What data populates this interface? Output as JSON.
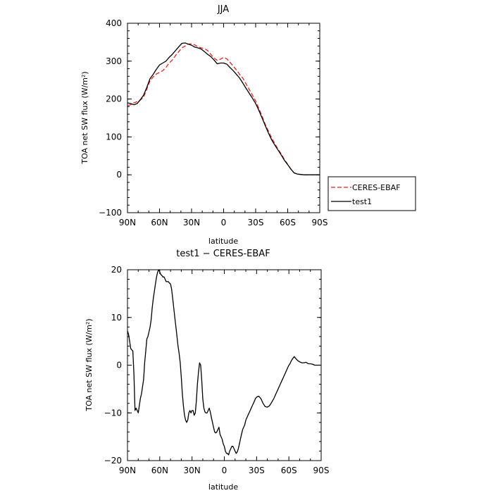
{
  "chart_data": [
    {
      "type": "line",
      "title": "JJA",
      "xlabel": "latitude",
      "ylabel": "TOA net SW flux (W/m²)",
      "xlim": [
        90,
        -90
      ],
      "ylim": [
        -100,
        400
      ],
      "x_tick_values": [
        90,
        60,
        30,
        0,
        -30,
        -60,
        -90
      ],
      "x_tick_labels": [
        "90N",
        "60N",
        "30N",
        "0",
        "30S",
        "60S",
        "90S"
      ],
      "y_tick_values": [
        -100,
        0,
        100,
        200,
        300,
        400
      ],
      "y_tick_labels": [
        "−100",
        "0",
        "100",
        "200",
        "300",
        "400"
      ],
      "legend_position": "right, outside plot",
      "series": [
        {
          "name": "CERES-EBAF",
          "color": "#e8231f",
          "style": "dashed",
          "x": [
            90,
            87,
            84,
            81,
            78,
            75,
            72,
            69,
            66,
            63,
            60,
            57,
            54,
            51,
            48,
            45,
            42,
            39,
            36,
            33,
            30,
            27,
            24,
            21,
            18,
            15,
            12,
            9,
            6,
            3,
            0,
            -3,
            -6,
            -9,
            -12,
            -15,
            -18,
            -21,
            -24,
            -27,
            -30,
            -33,
            -36,
            -39,
            -42,
            -45,
            -48,
            -51,
            -54,
            -57,
            -60,
            -63,
            -66,
            -69,
            -72,
            -75,
            -78,
            -81,
            -84,
            -87,
            -90
          ],
          "y": [
            183,
            185,
            190,
            193,
            197,
            205,
            225,
            247,
            258,
            266,
            270,
            275,
            283,
            295,
            303,
            315,
            325,
            335,
            340,
            345,
            346,
            343,
            338,
            335,
            333,
            328,
            318,
            308,
            302,
            305,
            310,
            306,
            297,
            287,
            277,
            265,
            255,
            240,
            225,
            210,
            195,
            175,
            155,
            133,
            115,
            97,
            82,
            67,
            55,
            40,
            28,
            15,
            5,
            2,
            1,
            0,
            0,
            0,
            0,
            0,
            0
          ]
        },
        {
          "name": "test1",
          "color": "#000000",
          "style": "solid",
          "x": [
            90,
            87,
            84,
            81,
            78,
            75,
            72,
            69,
            66,
            63,
            60,
            57,
            54,
            51,
            48,
            45,
            42,
            39,
            36,
            33,
            30,
            27,
            24,
            21,
            18,
            15,
            12,
            9,
            6,
            3,
            0,
            -3,
            -6,
            -9,
            -12,
            -15,
            -18,
            -21,
            -24,
            -27,
            -30,
            -33,
            -36,
            -39,
            -42,
            -45,
            -48,
            -51,
            -54,
            -57,
            -60,
            -63,
            -66,
            -69,
            -72,
            -75,
            -78,
            -81,
            -84,
            -87,
            -90
          ],
          "y": [
            190,
            188,
            185,
            188,
            198,
            210,
            230,
            253,
            265,
            278,
            290,
            295,
            300,
            310,
            318,
            328,
            338,
            347,
            348,
            345,
            342,
            337,
            335,
            332,
            325,
            318,
            312,
            303,
            293,
            295,
            295,
            292,
            283,
            275,
            265,
            255,
            242,
            228,
            215,
            202,
            188,
            170,
            150,
            130,
            110,
            92,
            78,
            65,
            52,
            38,
            27,
            15,
            5,
            2,
            1,
            0,
            0,
            0,
            0,
            0,
            0
          ]
        }
      ]
    },
    {
      "type": "line",
      "title": "test1 − CERES-EBAF",
      "xlabel": "latitude",
      "ylabel": "TOA net SW flux (W/m²)",
      "xlim": [
        90,
        -90
      ],
      "ylim": [
        -20,
        20
      ],
      "x_tick_values": [
        90,
        60,
        30,
        0,
        -30,
        -60,
        -90
      ],
      "x_tick_labels": [
        "90N",
        "60N",
        "30N",
        "0",
        "30S",
        "60S",
        "90S"
      ],
      "y_tick_values": [
        -20,
        -10,
        0,
        10,
        20
      ],
      "y_tick_labels": [
        "−20",
        "−10",
        "0",
        "10",
        "20"
      ],
      "series": [
        {
          "color": "#000000",
          "style": "solid",
          "x": [
            90,
            89,
            88,
            87,
            86,
            85,
            84,
            83,
            82,
            81,
            80,
            79,
            78,
            77,
            76,
            75,
            74,
            73,
            72,
            71,
            70,
            69,
            68,
            67,
            66,
            65,
            64,
            63,
            62,
            61,
            60,
            59,
            58,
            57,
            56,
            55,
            54,
            53,
            52,
            51,
            50,
            49,
            48,
            47,
            46,
            45,
            44,
            43,
            42,
            41,
            40,
            39,
            38,
            37,
            36,
            35,
            34,
            33,
            32,
            31,
            30,
            29,
            28,
            27,
            26,
            25,
            24,
            23,
            22,
            21,
            20,
            19,
            18,
            17,
            16,
            15,
            14,
            13,
            12,
            11,
            10,
            9,
            8,
            7,
            6,
            5,
            4,
            3,
            2,
            1,
            0,
            -1,
            -2,
            -3,
            -4,
            -5,
            -6,
            -7,
            -8,
            -9,
            -10,
            -11,
            -12,
            -13,
            -14,
            -15,
            -16,
            -17,
            -18,
            -19,
            -20,
            -21,
            -22,
            -23,
            -24,
            -25,
            -26,
            -27,
            -28,
            -29,
            -30,
            -32,
            -34,
            -36,
            -38,
            -40,
            -42,
            -44,
            -46,
            -48,
            -50,
            -52,
            -54,
            -56,
            -57,
            -58,
            -59,
            -60,
            -61,
            -62,
            -63,
            -64,
            -65,
            -66,
            -68,
            -70,
            -72,
            -74,
            -76,
            -78,
            -80,
            -82,
            -84,
            -86,
            -88,
            -90
          ],
          "y": [
            7.2,
            6.5,
            5.0,
            3.5,
            3.2,
            3.0,
            -2.0,
            -9.5,
            -9.0,
            -9.5,
            -10.0,
            -8.5,
            -7.0,
            -6.0,
            -4.5,
            -3.0,
            0.5,
            3.0,
            5.5,
            6.0,
            7.0,
            8.0,
            9.5,
            12.0,
            14.0,
            15.5,
            17.0,
            18.5,
            19.5,
            20.0,
            19.5,
            19.0,
            18.8,
            18.5,
            18.5,
            18.0,
            17.5,
            17.5,
            17.5,
            17.2,
            17.0,
            16.0,
            14.0,
            12.0,
            10.0,
            8.0,
            6.0,
            4.0,
            2.5,
            0.5,
            -2.5,
            -6.0,
            -8.5,
            -10.5,
            -11.5,
            -12.0,
            -11.5,
            -10.0,
            -9.5,
            -10.0,
            -9.5,
            -9.5,
            -10.5,
            -10.0,
            -7.5,
            -4.0,
            -1.5,
            0.5,
            0.0,
            -3.0,
            -7.0,
            -9.0,
            -9.8,
            -10.0,
            -10.0,
            -9.5,
            -9.0,
            -9.8,
            -11.0,
            -12.0,
            -13.0,
            -14.0,
            -14.2,
            -14.0,
            -13.5,
            -13.0,
            -14.5,
            -15.0,
            -15.5,
            -16.5,
            -17.0,
            -18.0,
            -18.5,
            -18.5,
            -18.8,
            -18.0,
            -17.5,
            -17.0,
            -17.0,
            -17.5,
            -18.0,
            -18.5,
            -18.2,
            -17.5,
            -16.5,
            -15.5,
            -14.5,
            -13.5,
            -13.0,
            -12.5,
            -11.5,
            -11.0,
            -10.5,
            -10.0,
            -9.5,
            -9.0,
            -8.5,
            -8.0,
            -7.5,
            -7.0,
            -6.7,
            -6.5,
            -7.0,
            -8.0,
            -8.7,
            -8.8,
            -8.5,
            -7.8,
            -7.0,
            -6.0,
            -5.0,
            -4.0,
            -3.0,
            -2.0,
            -1.5,
            -1.0,
            -0.5,
            0.0,
            0.3,
            0.8,
            1.2,
            1.5,
            1.8,
            1.5,
            1.0,
            0.7,
            0.5,
            0.5,
            0.6,
            0.3,
            0.3,
            0.2,
            0.0,
            0.0,
            0.0,
            0.0
          ]
        }
      ]
    }
  ]
}
